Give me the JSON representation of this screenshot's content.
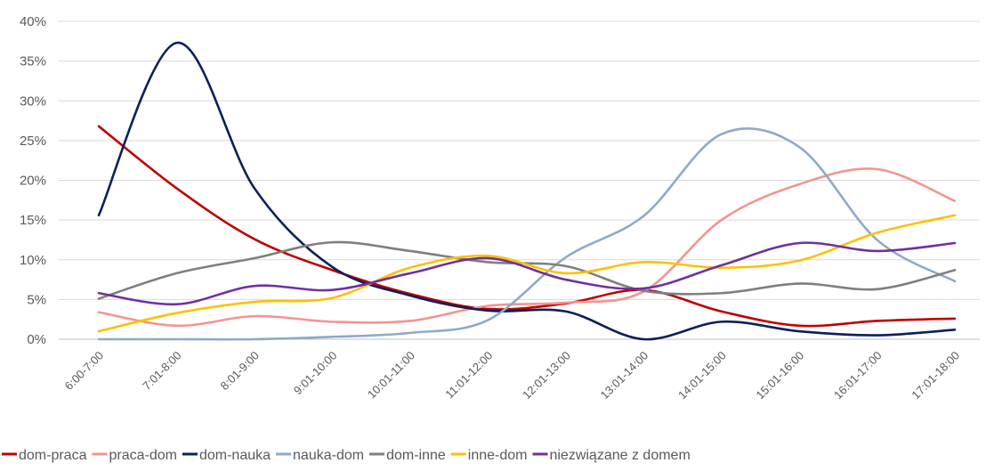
{
  "chart_data": {
    "type": "line",
    "title": "",
    "xlabel": "",
    "ylabel": "",
    "x": [
      "6:00-7:00",
      "7:01-8:00",
      "8:01-9:00",
      "9:01-10:00",
      "10:01-11:00",
      "11:01-12:00",
      "12:01-13:00",
      "13:01-14:00",
      "14:01-15:00",
      "15:01-16:00",
      "16:01-17:00",
      "17:01-18:00"
    ],
    "ylim": [
      0,
      40
    ],
    "yticks": [
      "0%",
      "5%",
      "10%",
      "15%",
      "20%",
      "25%",
      "30%",
      "35%",
      "40%"
    ],
    "grid": true,
    "legend_position": "bottom",
    "series": [
      {
        "name": "dom-praca",
        "color": "#c00000",
        "values": [
          26.8,
          19.0,
          12.6,
          8.7,
          5.7,
          3.8,
          4.5,
          6.2,
          3.5,
          1.7,
          2.3,
          2.6
        ]
      },
      {
        "name": "praca-dom",
        "color": "#f4948f",
        "values": [
          3.4,
          1.7,
          2.9,
          2.2,
          2.3,
          4.2,
          4.6,
          6.0,
          15.0,
          19.5,
          21.4,
          17.4
        ]
      },
      {
        "name": "dom-nauka",
        "color": "#0b1f5c",
        "values": [
          15.6,
          37.3,
          19.0,
          9.1,
          5.5,
          3.6,
          3.5,
          0.0,
          2.2,
          1.0,
          0.5,
          1.2
        ]
      },
      {
        "name": "nauka-dom",
        "color": "#8ea9c9",
        "values": [
          0.0,
          0.0,
          0.0,
          0.3,
          0.8,
          2.4,
          10.3,
          15.5,
          25.8,
          24.2,
          12.5,
          7.3
        ]
      },
      {
        "name": "dom-inne",
        "color": "#7f7f7f",
        "values": [
          5.1,
          8.3,
          10.2,
          12.2,
          11.1,
          9.7,
          9.2,
          6.1,
          5.8,
          7.0,
          6.3,
          8.7
        ]
      },
      {
        "name": "inne-dom",
        "color": "#ffc000",
        "values": [
          1.0,
          3.3,
          4.7,
          5.2,
          9.0,
          10.5,
          8.3,
          9.7,
          9.0,
          9.9,
          13.4,
          15.6
        ]
      },
      {
        "name": "niezwiązane z domem",
        "color": "#7030a0",
        "values": [
          5.8,
          4.4,
          6.7,
          6.2,
          8.3,
          10.2,
          7.5,
          6.4,
          9.3,
          12.1,
          11.1,
          12.1
        ]
      }
    ]
  }
}
